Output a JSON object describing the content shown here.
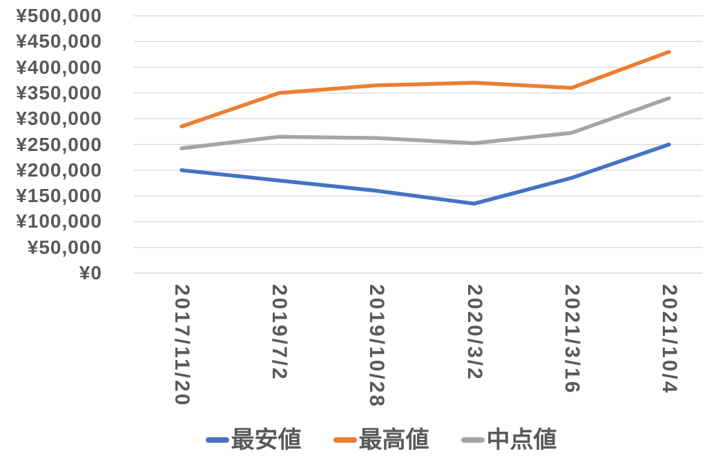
{
  "chart_data": {
    "type": "line",
    "title": "",
    "categories": [
      "2017/11/20",
      "2019/7/2",
      "2019/10/28",
      "2020/3/2",
      "2021/3/16",
      "2021/10/4"
    ],
    "series": [
      {
        "key": "lowest-price",
        "name": "最安値",
        "color": "#4472C4",
        "values": [
          200000,
          180000,
          160000,
          135000,
          185000,
          250000
        ]
      },
      {
        "key": "highest-price",
        "name": "最高値",
        "color": "#ED7D31",
        "values": [
          285000,
          350000,
          365000,
          370000,
          360000,
          430000
        ]
      },
      {
        "key": "midpoint-price",
        "name": "中点値",
        "color": "#A5A5A5",
        "values": [
          242500,
          265000,
          262500,
          252500,
          272500,
          340000
        ]
      }
    ],
    "y_axis": {
      "min": 0,
      "max": 500000,
      "step": 50000,
      "tick_labels_top_to_bottom": [
        "¥500,000",
        "¥450,000",
        "¥400,000",
        "¥350,000",
        "¥300,000",
        "¥250,000",
        "¥200,000",
        "¥150,000",
        "¥100,000",
        "¥50,000",
        "¥0"
      ]
    },
    "x_axis": {
      "label_rotation_deg": 90
    },
    "grid": true,
    "legend_position": "bottom",
    "styles": {
      "grid_color": "#D9D9D9",
      "label_color": "#595959",
      "background": "#FFFFFF",
      "line_width": 5.5
    }
  }
}
